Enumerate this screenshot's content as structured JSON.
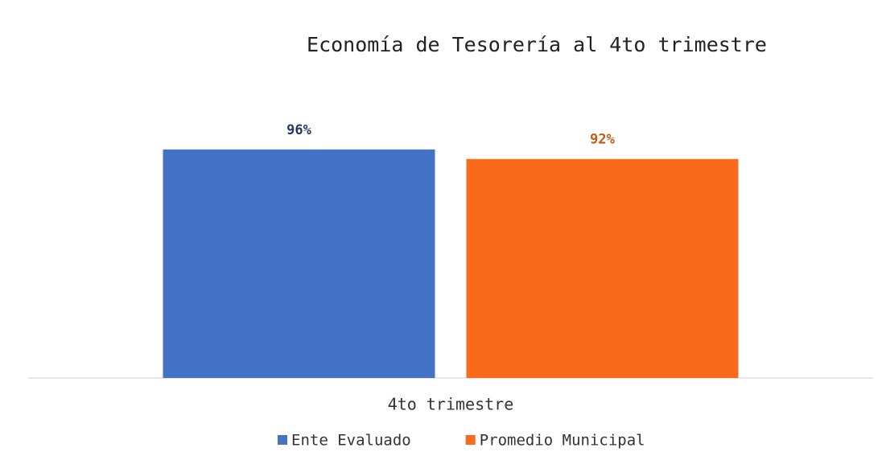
{
  "chart_data": {
    "type": "bar",
    "title": "Economía de Tesorería al 4to trimestre",
    "categories": [
      "4to trimestre"
    ],
    "series": [
      {
        "name": "Ente Evaluado",
        "color": "#4472c4",
        "values": [
          96
        ],
        "value_labels": [
          "96%"
        ]
      },
      {
        "name": "Promedio Municipal",
        "color": "#f96a1b",
        "values": [
          92
        ],
        "value_labels": [
          "92%"
        ]
      }
    ],
    "ylim": [
      0,
      100
    ]
  }
}
